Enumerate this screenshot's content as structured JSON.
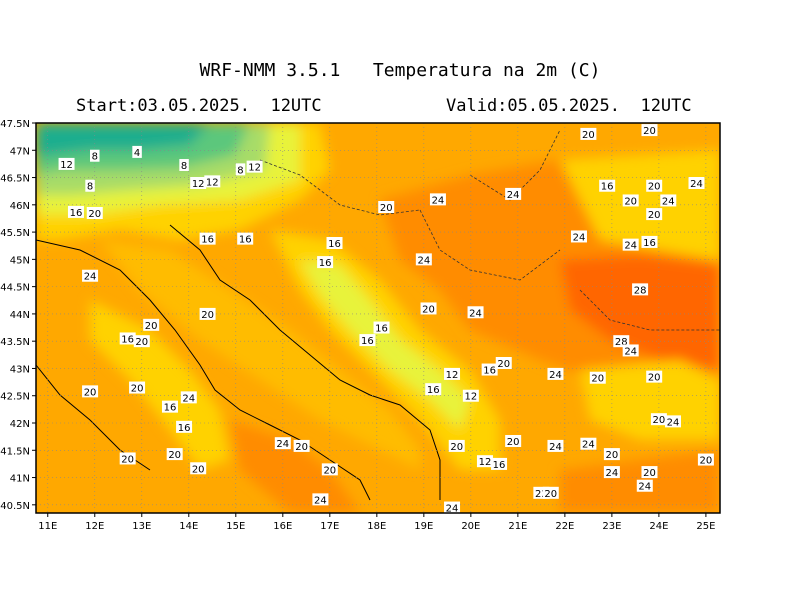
{
  "header": {
    "title": "WRF-NMM 3.5.1   Temperatura na 2m (C)",
    "start": "Start:03.05.2025.  12UTC",
    "valid": "Valid:05.05.2025.  12UTC"
  },
  "map": {
    "lon_range": [
      10.75,
      25.3
    ],
    "lat_range": [
      40.35,
      47.5
    ],
    "lat_ticks": [
      {
        "value": 47.5,
        "label": "47.5N"
      },
      {
        "value": 47,
        "label": "47N"
      },
      {
        "value": 46.5,
        "label": "46.5N"
      },
      {
        "value": 46,
        "label": "46N"
      },
      {
        "value": 45.5,
        "label": "45.5N"
      },
      {
        "value": 45,
        "label": "45N"
      },
      {
        "value": 44.5,
        "label": "44.5N"
      },
      {
        "value": 44,
        "label": "44N"
      },
      {
        "value": 43.5,
        "label": "43.5N"
      },
      {
        "value": 43,
        "label": "43N"
      },
      {
        "value": 42.5,
        "label": "42.5N"
      },
      {
        "value": 42,
        "label": "42N"
      },
      {
        "value": 41.5,
        "label": "41.5N"
      },
      {
        "value": 41,
        "label": "41N"
      },
      {
        "value": 40.5,
        "label": "40.5N"
      }
    ],
    "lon_ticks": [
      {
        "value": 11,
        "label": "11E"
      },
      {
        "value": 12,
        "label": "12E"
      },
      {
        "value": 13,
        "label": "13E"
      },
      {
        "value": 14,
        "label": "14E"
      },
      {
        "value": 15,
        "label": "15E"
      },
      {
        "value": 16,
        "label": "16E"
      },
      {
        "value": 17,
        "label": "17E"
      },
      {
        "value": 18,
        "label": "18E"
      },
      {
        "value": 19,
        "label": "19E"
      },
      {
        "value": 20,
        "label": "20E"
      },
      {
        "value": 21,
        "label": "21E"
      },
      {
        "value": 22,
        "label": "22E"
      },
      {
        "value": 23,
        "label": "23E"
      },
      {
        "value": 24,
        "label": "24E"
      },
      {
        "value": 25,
        "label": "25E"
      }
    ],
    "colors": {
      "c4": "#1fae8e",
      "c8": "#5cc77c",
      "c12": "#a7dc68",
      "c16": "#e8f33a",
      "c18": "#fff200",
      "c20": "#ffd200",
      "c22": "#ffbc00",
      "c24": "#ffa800",
      "c26": "#ff8c00",
      "c28": "#ff6600"
    }
  },
  "chart_data": {
    "type": "heatmap",
    "title": "WRF-NMM 3.5.1   Temperatura na 2m (C)",
    "variable": "2m temperature (C)",
    "contour_labels": [
      {
        "lon": 11.4,
        "lat": 46.75,
        "value": 12
      },
      {
        "lon": 12.0,
        "lat": 46.9,
        "value": 8
      },
      {
        "lon": 12.9,
        "lat": 46.97,
        "value": 4
      },
      {
        "lon": 11.9,
        "lat": 46.35,
        "value": 8
      },
      {
        "lon": 13.9,
        "lat": 46.73,
        "value": 8
      },
      {
        "lon": 14.2,
        "lat": 46.4,
        "value": 12
      },
      {
        "lon": 14.5,
        "lat": 46.43,
        "value": 12
      },
      {
        "lon": 15.1,
        "lat": 46.65,
        "value": 8
      },
      {
        "lon": 15.4,
        "lat": 46.7,
        "value": 12
      },
      {
        "lon": 11.6,
        "lat": 45.87,
        "value": 16
      },
      {
        "lon": 12.0,
        "lat": 45.85,
        "value": 20
      },
      {
        "lon": 14.4,
        "lat": 45.38,
        "value": 16
      },
      {
        "lon": 15.2,
        "lat": 45.38,
        "value": 16
      },
      {
        "lon": 17.1,
        "lat": 45.3,
        "value": 16
      },
      {
        "lon": 16.9,
        "lat": 44.95,
        "value": 16
      },
      {
        "lon": 11.9,
        "lat": 44.7,
        "value": 24
      },
      {
        "lon": 18.2,
        "lat": 45.96,
        "value": 20
      },
      {
        "lon": 19.3,
        "lat": 46.1,
        "value": 24
      },
      {
        "lon": 19.0,
        "lat": 45.0,
        "value": 24
      },
      {
        "lon": 20.9,
        "lat": 46.2,
        "value": 24
      },
      {
        "lon": 22.5,
        "lat": 47.3,
        "value": 20
      },
      {
        "lon": 23.8,
        "lat": 47.37,
        "value": 20
      },
      {
        "lon": 22.9,
        "lat": 46.35,
        "value": 16
      },
      {
        "lon": 23.4,
        "lat": 46.08,
        "value": 20
      },
      {
        "lon": 23.9,
        "lat": 46.35,
        "value": 20
      },
      {
        "lon": 24.2,
        "lat": 46.08,
        "value": 24
      },
      {
        "lon": 24.8,
        "lat": 46.4,
        "value": 24
      },
      {
        "lon": 23.9,
        "lat": 45.83,
        "value": 20
      },
      {
        "lon": 22.3,
        "lat": 45.42,
        "value": 24
      },
      {
        "lon": 23.4,
        "lat": 45.27,
        "value": 24
      },
      {
        "lon": 23.8,
        "lat": 45.32,
        "value": 16
      },
      {
        "lon": 23.6,
        "lat": 44.45,
        "value": 28
      },
      {
        "lon": 14.4,
        "lat": 44.0,
        "value": 20
      },
      {
        "lon": 13.2,
        "lat": 43.8,
        "value": 20
      },
      {
        "lon": 12.7,
        "lat": 43.55,
        "value": 16
      },
      {
        "lon": 13.0,
        "lat": 43.5,
        "value": 20
      },
      {
        "lon": 19.1,
        "lat": 44.1,
        "value": 20
      },
      {
        "lon": 20.1,
        "lat": 44.03,
        "value": 24
      },
      {
        "lon": 18.1,
        "lat": 43.75,
        "value": 16
      },
      {
        "lon": 17.8,
        "lat": 43.52,
        "value": 16
      },
      {
        "lon": 23.2,
        "lat": 43.5,
        "value": 28
      },
      {
        "lon": 23.4,
        "lat": 43.33,
        "value": 24
      },
      {
        "lon": 20.7,
        "lat": 43.1,
        "value": 20
      },
      {
        "lon": 20.4,
        "lat": 42.98,
        "value": 16
      },
      {
        "lon": 19.6,
        "lat": 42.9,
        "value": 12
      },
      {
        "lon": 21.8,
        "lat": 42.9,
        "value": 24
      },
      {
        "lon": 22.7,
        "lat": 42.83,
        "value": 20
      },
      {
        "lon": 23.9,
        "lat": 42.85,
        "value": 20
      },
      {
        "lon": 19.2,
        "lat": 42.62,
        "value": 16
      },
      {
        "lon": 20.0,
        "lat": 42.5,
        "value": 12
      },
      {
        "lon": 12.9,
        "lat": 42.65,
        "value": 20
      },
      {
        "lon": 11.9,
        "lat": 42.58,
        "value": 20
      },
      {
        "lon": 14.0,
        "lat": 42.47,
        "value": 24
      },
      {
        "lon": 13.6,
        "lat": 42.3,
        "value": 16
      },
      {
        "lon": 13.9,
        "lat": 41.93,
        "value": 16
      },
      {
        "lon": 24.0,
        "lat": 42.07,
        "value": 20
      },
      {
        "lon": 24.3,
        "lat": 42.03,
        "value": 24
      },
      {
        "lon": 16.0,
        "lat": 41.63,
        "value": 24
      },
      {
        "lon": 16.4,
        "lat": 41.58,
        "value": 20
      },
      {
        "lon": 19.7,
        "lat": 41.58,
        "value": 20
      },
      {
        "lon": 20.9,
        "lat": 41.67,
        "value": 20
      },
      {
        "lon": 21.8,
        "lat": 41.58,
        "value": 24
      },
      {
        "lon": 22.5,
        "lat": 41.62,
        "value": 24
      },
      {
        "lon": 23.0,
        "lat": 41.43,
        "value": 20
      },
      {
        "lon": 13.7,
        "lat": 41.43,
        "value": 20
      },
      {
        "lon": 12.7,
        "lat": 41.35,
        "value": 20
      },
      {
        "lon": 20.3,
        "lat": 41.3,
        "value": 12
      },
      {
        "lon": 20.6,
        "lat": 41.25,
        "value": 16
      },
      {
        "lon": 14.2,
        "lat": 41.17,
        "value": 20
      },
      {
        "lon": 17.0,
        "lat": 41.15,
        "value": 20
      },
      {
        "lon": 23.0,
        "lat": 41.1,
        "value": 24
      },
      {
        "lon": 23.8,
        "lat": 41.1,
        "value": 20
      },
      {
        "lon": 25.0,
        "lat": 41.33,
        "value": 20
      },
      {
        "lon": 21.5,
        "lat": 40.72,
        "value": 22
      },
      {
        "lon": 21.7,
        "lat": 40.72,
        "value": 20
      },
      {
        "lon": 23.7,
        "lat": 40.85,
        "value": 24
      },
      {
        "lon": 16.8,
        "lat": 40.6,
        "value": 24
      },
      {
        "lon": 19.6,
        "lat": 40.45,
        "value": 24
      }
    ]
  }
}
